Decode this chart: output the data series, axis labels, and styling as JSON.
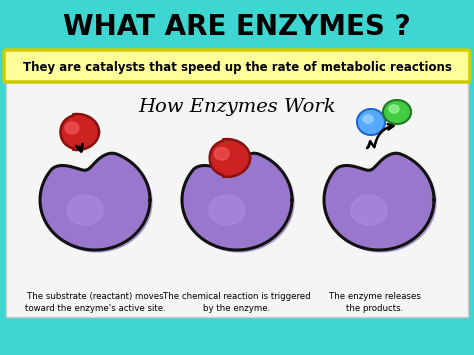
{
  "title": "WHAT ARE ENZYMES ?",
  "title_color": "#000000",
  "title_bg": "#3dd6d0",
  "subtitle": "They are catalysts that speed up the rate of metabolic reactions",
  "subtitle_bg": "#ffff99",
  "subtitle_border": "#cccc00",
  "main_bg": "#3dd6d0",
  "panel_bg": "#f5f5f5",
  "panel_title": "How Enzymes Work",
  "captions": [
    "The substrate (reactant) moves\ntoward the enzyme's active site.",
    "The chemical reaction is triggered\nby the enzyme.",
    "The enzyme releases\nthe products."
  ],
  "enzyme_color": "#9977cc",
  "enzyme_highlight": "#bb99ee",
  "enzyme_shadow": "#6644aa",
  "substrate_color": "#cc2222",
  "substrate_dark": "#881111",
  "product1_color": "#55aaff",
  "product1_dark": "#2266cc",
  "product2_color": "#44cc44",
  "product2_dark": "#227722",
  "outline_color": "#111111"
}
